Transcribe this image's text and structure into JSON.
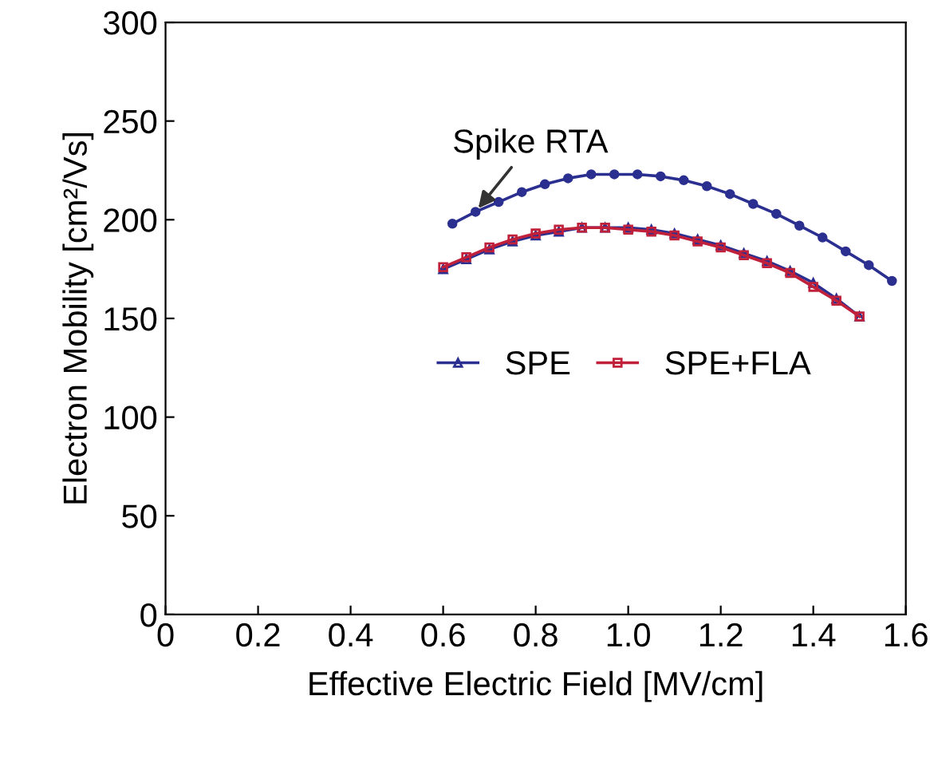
{
  "chart_data": {
    "type": "line",
    "xlabel": "Effective Electric Field [MV/cm]",
    "ylabel": "Electron Mobility [cm²/Vs]",
    "xlim": [
      0,
      1.6
    ],
    "xticks": [
      0,
      {
        "value": 0.2,
        "label": "0.2"
      },
      {
        "value": 0.4,
        "label": "0.4"
      },
      {
        "value": 0.6,
        "label": "0.6"
      },
      {
        "value": 0.8,
        "label": "0.8"
      },
      {
        "value": 1.0,
        "label": "1.0"
      },
      {
        "value": 1.2,
        "label": "1.2"
      },
      {
        "value": 1.4,
        "label": "1.4"
      },
      {
        "value": 1.6,
        "label": "1.6"
      }
    ],
    "ylim": [
      0,
      300
    ],
    "yticks": [
      0,
      50,
      100,
      150,
      200,
      250,
      300
    ],
    "grid": false,
    "legend": "center",
    "annotations": [
      {
        "text": "Spike RTA",
        "x": 0.67,
        "y": 204
      }
    ],
    "series": [
      {
        "color": "#2b2f8f",
        "marker": "circle",
        "x": [
          0.62,
          0.67,
          0.72,
          0.77,
          0.82,
          0.87,
          0.92,
          0.97,
          1.02,
          1.07,
          1.12,
          1.17,
          1.22,
          1.27,
          1.32,
          1.37,
          1.42,
          1.47,
          1.52,
          1.57
        ],
        "values": [
          198,
          204,
          209,
          214,
          218,
          221,
          223,
          223,
          223,
          222,
          220,
          217,
          213,
          208,
          203,
          197,
          191,
          184,
          177,
          169
        ]
      },
      {
        "name": "SPE",
        "color": "#2b2f8f",
        "marker": "triangle",
        "x": [
          0.6,
          0.65,
          0.7,
          0.75,
          0.8,
          0.85,
          0.9,
          0.95,
          1.0,
          1.05,
          1.1,
          1.15,
          1.2,
          1.25,
          1.3,
          1.35,
          1.4,
          1.45,
          1.5
        ],
        "values": [
          175,
          180,
          185,
          189,
          192,
          194,
          196,
          196,
          196,
          195,
          193,
          190,
          187,
          183,
          179,
          174,
          168,
          160,
          151
        ]
      },
      {
        "name": "SPE+FLA",
        "color": "#c0203a",
        "marker": "square",
        "x": [
          0.6,
          0.65,
          0.7,
          0.75,
          0.8,
          0.85,
          0.9,
          0.95,
          1.0,
          1.05,
          1.1,
          1.15,
          1.2,
          1.25,
          1.3,
          1.35,
          1.4,
          1.45,
          1.5
        ],
        "values": [
          176,
          181,
          186,
          190,
          193,
          195,
          196,
          196,
          195,
          194,
          192,
          189,
          186,
          182,
          178,
          173,
          166,
          159,
          151
        ]
      }
    ]
  }
}
